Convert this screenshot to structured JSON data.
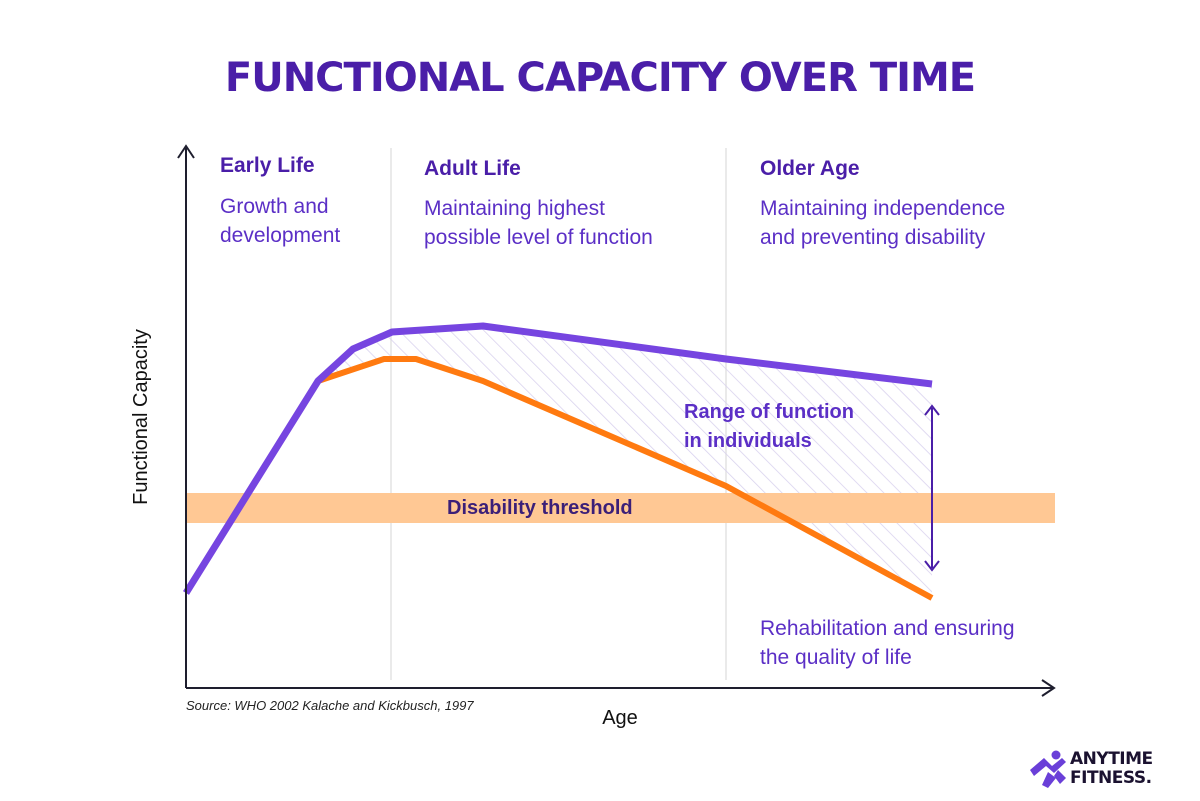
{
  "title": "FUNCTIONAL CAPACITY OVER TIME",
  "phases": [
    {
      "heading": "Early Life",
      "lines": [
        "Growth and",
        "development"
      ]
    },
    {
      "heading": "Adult Life",
      "lines": [
        "Maintaining highest",
        "possible level of function"
      ]
    },
    {
      "heading": "Older Age",
      "lines": [
        "Maintaining independence",
        "and preventing disability"
      ]
    }
  ],
  "range_label": [
    "Range of function",
    "in individuals"
  ],
  "threshold_label": "Disability threshold",
  "rehab_label": [
    "Rehabilitation and ensuring",
    "the quality of life"
  ],
  "y_axis_label": "Functional Capacity",
  "x_axis_label": "Age",
  "source": "Source: WHO 2002 Kalache and Kickbusch, 1997",
  "logo": {
    "line1": "ANYTIME",
    "line2": "FITNESS."
  },
  "colors": {
    "title": "#4a1ea8",
    "upper_curve": "#7645e0",
    "lower_curve": "#ff7a10",
    "threshold_band": "#ffc894",
    "hatch": "#d9d2ee",
    "arrow": "#4a1ea8"
  },
  "icons": [
    "runner-logo-icon"
  ]
}
